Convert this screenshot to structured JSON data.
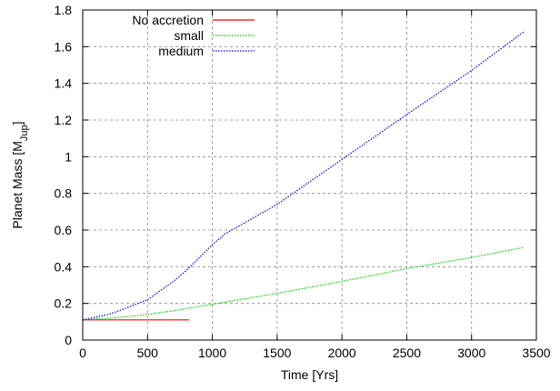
{
  "chart_data": {
    "type": "line",
    "xlabel": "Time [Yrs]",
    "ylabel": {
      "main": "Planet Mass [M",
      "sub": "Jup",
      "close": "]"
    },
    "xlim": [
      0,
      3500
    ],
    "ylim": [
      0,
      1.8
    ],
    "xticks": [
      0,
      500,
      1000,
      1500,
      2000,
      2500,
      3000,
      3500
    ],
    "yticks": [
      0,
      0.2,
      0.4,
      0.6,
      0.8,
      1,
      1.2,
      1.4,
      1.6,
      1.8
    ],
    "xtick_labels": [
      "0",
      "500",
      "1000",
      "1500",
      "2000",
      "2500",
      "3000",
      "3500"
    ],
    "ytick_labels": [
      "0",
      "0.2",
      "0.4",
      "0.6",
      "0.8",
      "1",
      "1.2",
      "1.4",
      "1.6",
      "1.8"
    ],
    "grid": true,
    "legend_position": "top-left",
    "series": [
      {
        "name": "No accretion",
        "color": "#ff0000",
        "dash": "solid",
        "x": [
          0,
          820
        ],
        "y": [
          0.11,
          0.11
        ]
      },
      {
        "name": "small",
        "color": "#00cc00",
        "dash": "dotted",
        "x": [
          0,
          300,
          500,
          700,
          1000,
          1500,
          2000,
          2500,
          3000,
          3400
        ],
        "y": [
          0.11,
          0.125,
          0.14,
          0.16,
          0.195,
          0.255,
          0.32,
          0.39,
          0.45,
          0.505
        ]
      },
      {
        "name": "medium",
        "color": "#0000ff",
        "dash": "dotted",
        "x": [
          0,
          200,
          300,
          500,
          600,
          700,
          800,
          900,
          1000,
          1100,
          1200,
          1500,
          2000,
          2500,
          3000,
          3400
        ],
        "y": [
          0.11,
          0.14,
          0.165,
          0.22,
          0.27,
          0.32,
          0.38,
          0.45,
          0.52,
          0.58,
          0.62,
          0.74,
          0.985,
          1.23,
          1.47,
          1.68
        ]
      }
    ]
  }
}
